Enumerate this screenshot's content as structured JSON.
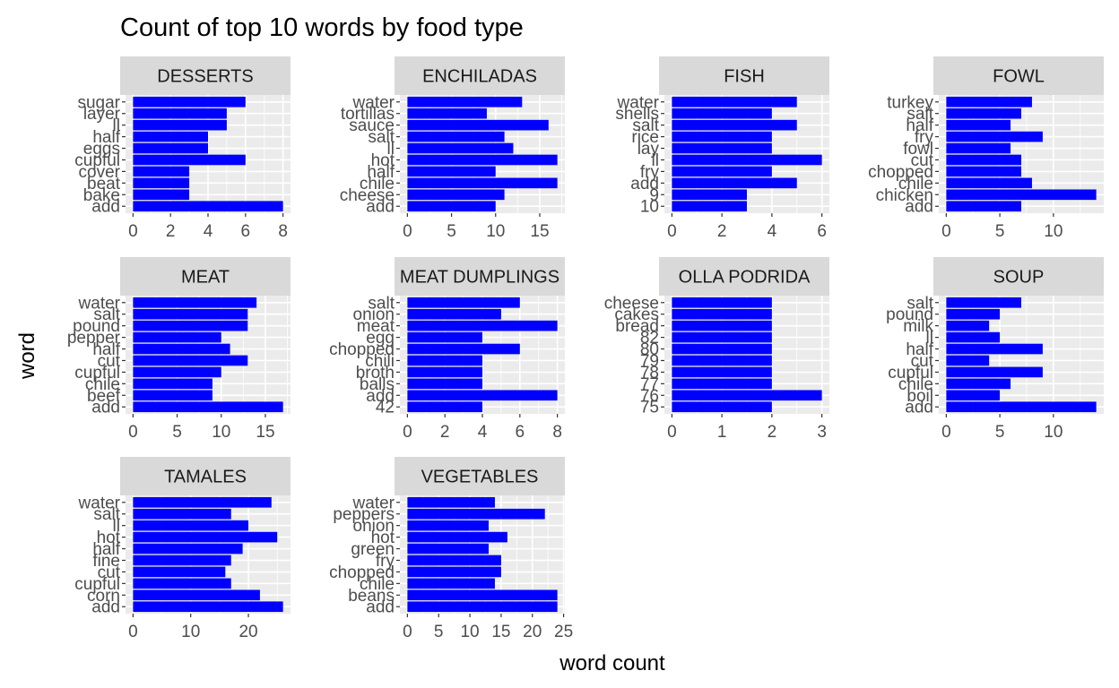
{
  "chart_data": {
    "type": "bar",
    "orientation": "horizontal",
    "title": "Count of top 10 words by food type",
    "xlabel": "word count",
    "ylabel": "word",
    "bar_color": "#0000FF",
    "panel_background": "#EBEBEB",
    "strip_background": "#D9D9D9",
    "grid": true,
    "panels": [
      {
        "name": "DESSERTS",
        "categories": [
          "add",
          "bake",
          "beat",
          "cover",
          "cupful",
          "eggs",
          "half",
          "ll",
          "layer",
          "sugar"
        ],
        "values": [
          8,
          3,
          3,
          3,
          6,
          4,
          4,
          5,
          5,
          6
        ],
        "xlim": [
          -0.4,
          8.4
        ],
        "xticks": [
          0,
          2,
          4,
          6,
          8
        ],
        "xtick_labels": [
          "0",
          "2",
          "4",
          "6",
          "8"
        ]
      },
      {
        "name": "ENCHILADAS",
        "categories": [
          "add",
          "cheese",
          "chile",
          "half",
          "hot",
          "ll",
          "salt",
          "sauce",
          "tortillas",
          "water"
        ],
        "values": [
          10,
          11,
          17,
          10,
          17,
          12,
          11,
          16,
          9,
          13
        ],
        "xlim": [
          -0.85,
          17.85
        ],
        "xticks": [
          0,
          5,
          10,
          15
        ],
        "xtick_labels": [
          "0",
          "5",
          "10",
          "15"
        ]
      },
      {
        "name": "FISH",
        "categories": [
          "10",
          "9",
          "add",
          "fry",
          "ll",
          "lay",
          "rice",
          "salt",
          "shells",
          "water"
        ],
        "values": [
          3,
          3,
          5,
          4,
          6,
          4,
          4,
          5,
          4,
          5
        ],
        "xlim": [
          -0.3,
          6.3
        ],
        "xticks": [
          0,
          2,
          4,
          6
        ],
        "xtick_labels": [
          "0",
          "2",
          "4",
          "6"
        ]
      },
      {
        "name": "FOWL",
        "categories": [
          "add",
          "chicken",
          "chile",
          "chopped",
          "cut",
          "fowl",
          "fry",
          "half",
          "salt",
          "turkey"
        ],
        "values": [
          7,
          14,
          8,
          7,
          7,
          6,
          9,
          6,
          7,
          8
        ],
        "xlim": [
          -0.7,
          14.7
        ],
        "xticks": [
          0,
          5,
          10
        ],
        "xtick_labels": [
          "0",
          "5",
          "10"
        ]
      },
      {
        "name": "MEAT",
        "categories": [
          "add",
          "beef",
          "chile",
          "cupful",
          "cut",
          "half",
          "pepper",
          "pound",
          "salt",
          "water"
        ],
        "values": [
          17,
          9,
          9,
          10,
          13,
          11,
          10,
          13,
          13,
          14
        ],
        "xlim": [
          -0.85,
          17.85
        ],
        "xticks": [
          0,
          5,
          10,
          15
        ],
        "xtick_labels": [
          "0",
          "5",
          "10",
          "15"
        ]
      },
      {
        "name": "MEAT DUMPLINGS",
        "categories": [
          "42",
          "add",
          "balls",
          "broth",
          "chili",
          "chopped",
          "egg",
          "meat",
          "onion",
          "salt"
        ],
        "values": [
          4,
          8,
          4,
          4,
          4,
          6,
          4,
          8,
          5,
          6
        ],
        "xlim": [
          -0.4,
          8.4
        ],
        "xticks": [
          0,
          2,
          4,
          6,
          8
        ],
        "xtick_labels": [
          "0",
          "2",
          "4",
          "6",
          "8"
        ]
      },
      {
        "name": "OLLA PODRIDA",
        "categories": [
          "75",
          "76",
          "77",
          "78",
          "79",
          "80",
          "82",
          "bread",
          "cakes",
          "cheese"
        ],
        "values": [
          2,
          3,
          2,
          2,
          2,
          2,
          2,
          2,
          2,
          2
        ],
        "xlim": [
          -0.15,
          3.15
        ],
        "xticks": [
          0,
          1,
          2,
          3
        ],
        "xtick_labels": [
          "0",
          "1",
          "2",
          "3"
        ]
      },
      {
        "name": "SOUP",
        "categories": [
          "add",
          "boil",
          "chile",
          "cupful",
          "cut",
          "half",
          "ll",
          "milk",
          "pound",
          "salt"
        ],
        "values": [
          14,
          5,
          6,
          9,
          4,
          9,
          5,
          4,
          5,
          7
        ],
        "xlim": [
          -0.7,
          14.7
        ],
        "xticks": [
          0,
          5,
          10
        ],
        "xtick_labels": [
          "0",
          "5",
          "10"
        ]
      },
      {
        "name": "TAMALES",
        "categories": [
          "add",
          "corn",
          "cupful",
          "cut",
          "fine",
          "half",
          "hot",
          "ll",
          "salt",
          "water"
        ],
        "values": [
          26,
          22,
          17,
          16,
          17,
          19,
          25,
          20,
          17,
          24
        ],
        "xlim": [
          -1.3,
          27.3
        ],
        "xticks": [
          0,
          10,
          20
        ],
        "xtick_labels": [
          "0",
          "10",
          "20"
        ]
      },
      {
        "name": "VEGETABLES",
        "categories": [
          "add",
          "beans",
          "chile",
          "chopped",
          "fry",
          "green",
          "hot",
          "onion",
          "peppers",
          "water"
        ],
        "values": [
          24,
          24,
          14,
          15,
          15,
          13,
          16,
          13,
          22,
          14
        ],
        "xlim": [
          -1.2,
          25.2
        ],
        "xticks": [
          0,
          5,
          10,
          15,
          20,
          25
        ],
        "xtick_labels": [
          "0",
          "5",
          "10",
          "15",
          "20",
          "25"
        ]
      }
    ]
  }
}
